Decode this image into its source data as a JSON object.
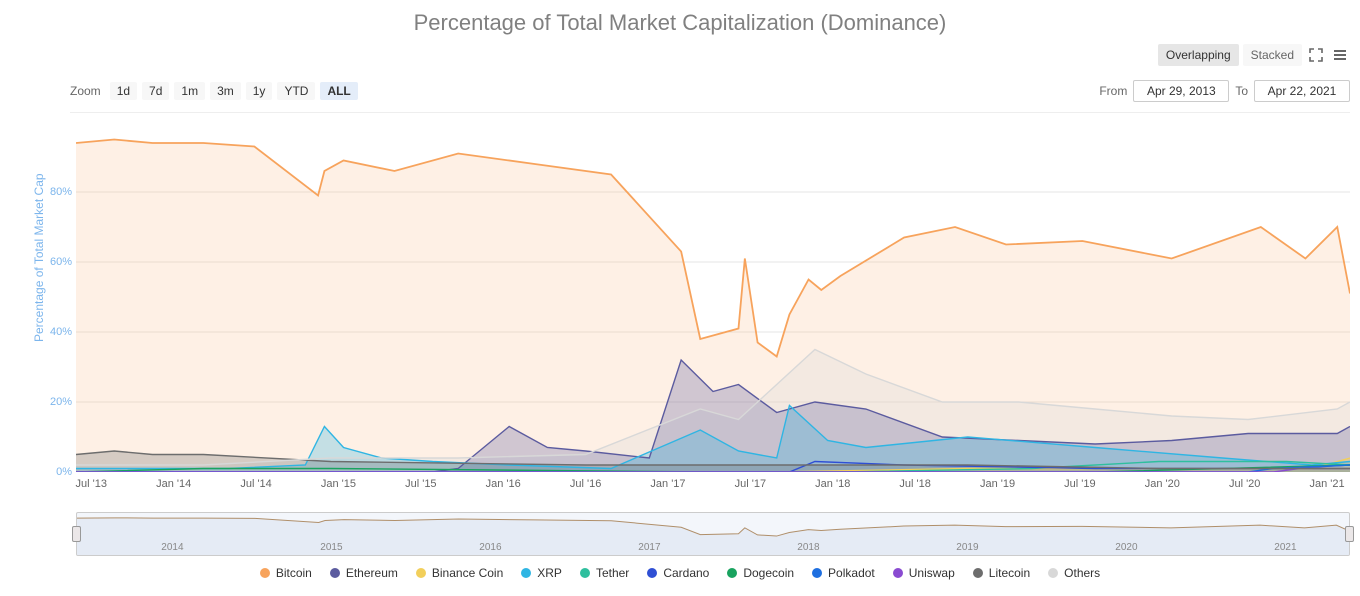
{
  "title": "Percentage of Total Market Capitalization (Dominance)",
  "view_modes": {
    "overlapping": "Overlapping",
    "stacked": "Stacked",
    "active": "overlapping"
  },
  "zoom": {
    "label": "Zoom",
    "ranges": [
      "1d",
      "7d",
      "1m",
      "3m",
      "1y",
      "YTD",
      "ALL"
    ],
    "active": "ALL"
  },
  "date_range": {
    "from_label": "From",
    "from": "Apr 29, 2013",
    "to_label": "To",
    "to": "Apr 22, 2021"
  },
  "yaxis": {
    "title": "Percentage of Total Market Cap",
    "min": 0,
    "max": 100,
    "ticks": [
      0,
      20,
      40,
      60,
      80
    ],
    "tick_suffix": "%",
    "tick_color": "#7cb5ec"
  },
  "xaxis": {
    "ticks": [
      "Jul '13",
      "Jan '14",
      "Jul '14",
      "Jan '15",
      "Jul '15",
      "Jan '16",
      "Jul '16",
      "Jan '17",
      "Jul '17",
      "Jan '18",
      "Jul '18",
      "Jan '19",
      "Jul '19",
      "Jan '20",
      "Jul '20",
      "Jan '21"
    ]
  },
  "navigator_ticks": [
    "2014",
    "2015",
    "2016",
    "2017",
    "2018",
    "2019",
    "2020",
    "2021"
  ],
  "series": [
    {
      "name": "Bitcoin",
      "color": "#f7a35c",
      "fill": true,
      "x": [
        0,
        0.03,
        0.06,
        0.1,
        0.14,
        0.19,
        0.195,
        0.21,
        0.25,
        0.3,
        0.36,
        0.42,
        0.475,
        0.49,
        0.52,
        0.525,
        0.535,
        0.55,
        0.56,
        0.575,
        0.585,
        0.6,
        0.65,
        0.69,
        0.73,
        0.79,
        0.86,
        0.93,
        0.965,
        0.99,
        1
      ],
      "y": [
        94,
        95,
        94,
        94,
        93,
        79,
        86,
        89,
        86,
        91,
        88,
        85,
        63,
        38,
        41,
        61,
        37,
        33,
        45,
        55,
        52,
        56,
        67,
        70,
        65,
        66,
        61,
        70,
        61,
        70,
        51
      ]
    },
    {
      "name": "Ethereum",
      "color": "#5b5b9f",
      "fill": true,
      "x": [
        0,
        0.28,
        0.3,
        0.34,
        0.37,
        0.4,
        0.45,
        0.475,
        0.5,
        0.52,
        0.55,
        0.58,
        0.62,
        0.68,
        0.74,
        0.8,
        0.86,
        0.92,
        0.99,
        1
      ],
      "y": [
        0,
        0,
        1,
        13,
        7,
        6,
        4,
        32,
        23,
        25,
        17,
        20,
        18,
        10,
        9,
        8,
        9,
        11,
        11,
        13
      ]
    },
    {
      "name": "Binance Coin",
      "color": "#f2cf5b",
      "fill": true,
      "x": [
        0,
        0.55,
        0.7,
        0.85,
        0.97,
        1
      ],
      "y": [
        0,
        0,
        1,
        1,
        1,
        4
      ]
    },
    {
      "name": "XRP",
      "color": "#2fb5e3",
      "fill": true,
      "x": [
        0,
        0.12,
        0.18,
        0.195,
        0.21,
        0.24,
        0.28,
        0.34,
        0.42,
        0.49,
        0.52,
        0.55,
        0.56,
        0.59,
        0.62,
        0.7,
        0.8,
        0.9,
        0.97,
        1
      ],
      "y": [
        1,
        1,
        2,
        13,
        7,
        4,
        3,
        2,
        1,
        12,
        6,
        4,
        19,
        9,
        7,
        10,
        7,
        4,
        2,
        3
      ]
    },
    {
      "name": "Tether",
      "color": "#2fbf9e",
      "fill": false,
      "x": [
        0,
        0.4,
        0.6,
        0.75,
        0.85,
        0.95,
        1
      ],
      "y": [
        0,
        0,
        0,
        1,
        3,
        3,
        2
      ]
    },
    {
      "name": "Cardano",
      "color": "#2f4fd4",
      "fill": false,
      "x": [
        0,
        0.56,
        0.58,
        0.65,
        0.8,
        0.95,
        1
      ],
      "y": [
        0,
        0,
        3,
        2,
        1,
        1,
        2
      ]
    },
    {
      "name": "Dogecoin",
      "color": "#19a35f",
      "fill": false,
      "x": [
        0,
        0.1,
        0.2,
        0.5,
        0.8,
        1
      ],
      "y": [
        0,
        1,
        1,
        0,
        0,
        2
      ]
    },
    {
      "name": "Polkadot",
      "color": "#1e6fe0",
      "fill": false,
      "x": [
        0,
        0.92,
        0.94,
        1
      ],
      "y": [
        0,
        0,
        1,
        2
      ]
    },
    {
      "name": "Uniswap",
      "color": "#8a4bd1",
      "fill": false,
      "x": [
        0,
        0.94,
        0.96,
        1
      ],
      "y": [
        0,
        0,
        1,
        1
      ]
    },
    {
      "name": "Litecoin",
      "color": "#6d6d6d",
      "fill": true,
      "x": [
        0,
        0.03,
        0.06,
        0.1,
        0.2,
        0.4,
        0.55,
        0.7,
        0.85,
        1
      ],
      "y": [
        5,
        6,
        5,
        5,
        3,
        2,
        2,
        2,
        1,
        1
      ]
    },
    {
      "name": "Others",
      "color": "#d8d8d8",
      "fill": true,
      "x": [
        0,
        0.1,
        0.2,
        0.3,
        0.4,
        0.49,
        0.52,
        0.55,
        0.58,
        0.62,
        0.68,
        0.74,
        0.8,
        0.86,
        0.92,
        0.99,
        1
      ],
      "y": [
        2,
        2,
        4,
        4,
        5,
        18,
        15,
        25,
        35,
        28,
        20,
        20,
        18,
        16,
        15,
        18,
        20
      ]
    }
  ],
  "background_color": "#ffffff",
  "grid_color": "#e6e6e6",
  "navigator_bg": "#f3f6fb",
  "navigator_line": "#b08f6a"
}
